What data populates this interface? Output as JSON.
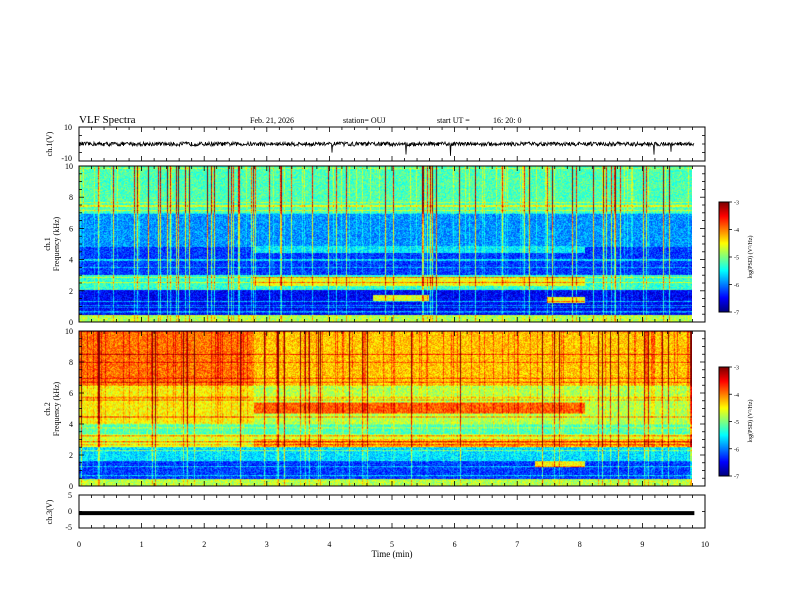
{
  "header": {
    "title": "VLF Spectra",
    "date": "Feb. 21, 2026",
    "station": "station= OUJ",
    "start": "start UT =",
    "start_time": "16: 20: 0"
  },
  "chart_data": [
    {
      "type": "line",
      "name": "ch1-waveform",
      "ylabel": "ch.1(V)",
      "ylim": [
        -10,
        10
      ],
      "yticks": [
        "10",
        "-10"
      ],
      "baseline": 0,
      "noise_amplitude": 1.2
    },
    {
      "type": "heatmap",
      "name": "ch1-spectrogram",
      "ylabel": "ch.1\nFrequency (kHz)",
      "ylim": [
        0,
        10
      ],
      "yticks": [
        "10",
        "8",
        "6",
        "4",
        "2",
        "0"
      ],
      "colorbar": {
        "label": "log(PSD) (V²/Hz)",
        "range": [
          -7,
          -3
        ],
        "ticks": [
          "-3",
          "-4",
          "-5",
          "-6",
          "-7"
        ]
      }
    },
    {
      "type": "heatmap",
      "name": "ch2-spectrogram",
      "ylabel": "ch.2\nFrequency (kHz)",
      "ylim": [
        0,
        10
      ],
      "yticks": [
        "10",
        "8",
        "6",
        "4",
        "2",
        "0"
      ],
      "colorbar": {
        "label": "log(PSD) (V²/Hz)",
        "range": [
          -7,
          -3
        ],
        "ticks": [
          "-3",
          "-4",
          "-5",
          "-6",
          "-7"
        ]
      }
    },
    {
      "type": "line",
      "name": "ch3-waveform",
      "ylabel": "ch.3(V)",
      "ylim": [
        -5,
        5
      ],
      "yticks": [
        "5",
        "0",
        "-5"
      ],
      "baseline": -0.5
    }
  ],
  "time_axis": {
    "label": "Time (min)",
    "range": [
      0,
      10
    ],
    "ticks": [
      "0",
      "1",
      "2",
      "3",
      "4",
      "5",
      "6",
      "7",
      "8",
      "9",
      "10"
    ],
    "data_end": 9.83
  },
  "colors": {
    "colormap": [
      "#00007f",
      "#0000ff",
      "#007fff",
      "#00ffff",
      "#7fff7f",
      "#ffff00",
      "#ff7f00",
      "#ff0000",
      "#7f0000"
    ]
  }
}
